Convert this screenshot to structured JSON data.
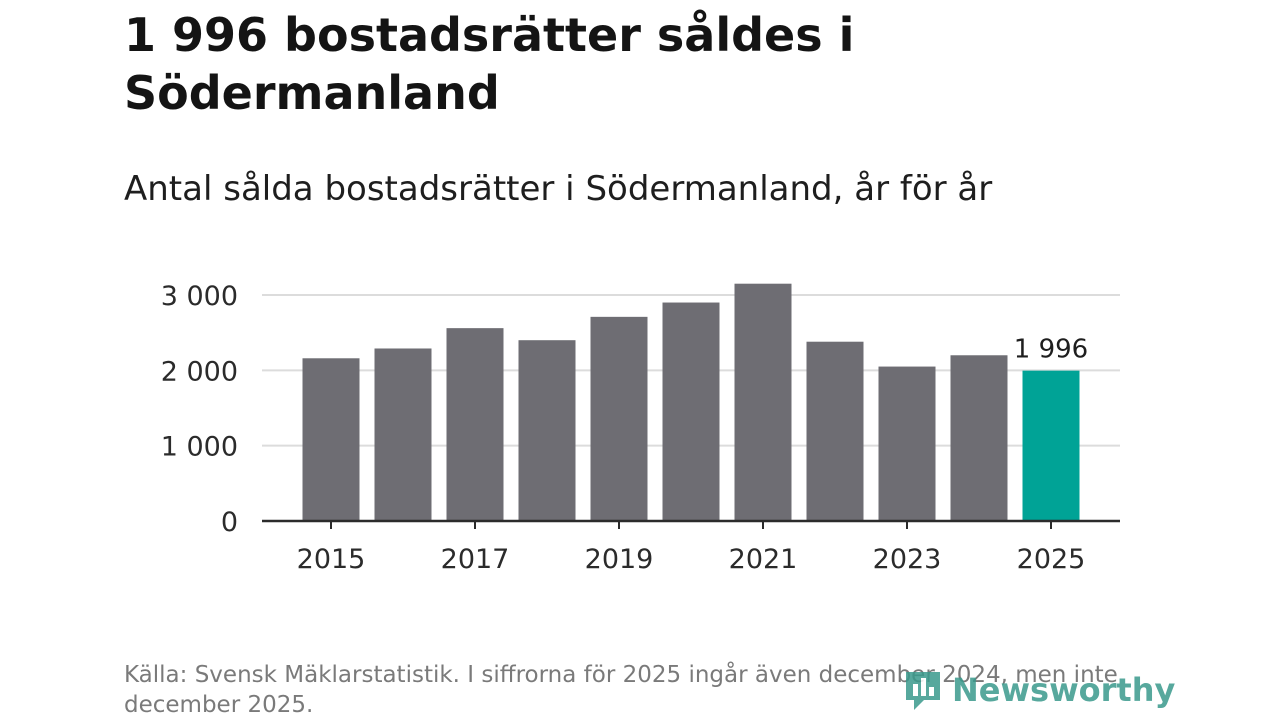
{
  "header": {
    "title": "1 996 bostadsrätter såldes i Södermanland",
    "subtitle": "Antal sålda bostadsrätter i Södermanland, år för år"
  },
  "chart_data": {
    "type": "bar",
    "title": "Antal sålda bostadsrätter i Södermanland, år för år",
    "xlabel": "",
    "ylabel": "",
    "categories": [
      "2015",
      "2016",
      "2017",
      "2018",
      "2019",
      "2020",
      "2021",
      "2022",
      "2023",
      "2024",
      "2025"
    ],
    "values": [
      2160,
      2290,
      2560,
      2400,
      2710,
      2900,
      3150,
      2380,
      2050,
      2200,
      1996
    ],
    "x_tick_labels": [
      "2015",
      "2017",
      "2019",
      "2021",
      "2023",
      "2025"
    ],
    "y_ticks": [
      0,
      1000,
      2000,
      3000
    ],
    "y_tick_labels": [
      "0",
      "1 000",
      "2 000",
      "3 000"
    ],
    "ylim": [
      0,
      3000
    ],
    "highlight_index": 10,
    "highlight_label": "1 996",
    "colors": {
      "bar": "#6e6d73",
      "highlight": "#00a396",
      "grid": "#dcdcdc",
      "axis": "#2b2b2b"
    }
  },
  "footer": {
    "source": "Källa: Svensk Mäklarstatistik. I siffrorna för 2025 ingår även december 2024, men inte december 2025.",
    "logo_text": "Newsworthy",
    "logo_icon": "newsworthy-logo-icon"
  }
}
